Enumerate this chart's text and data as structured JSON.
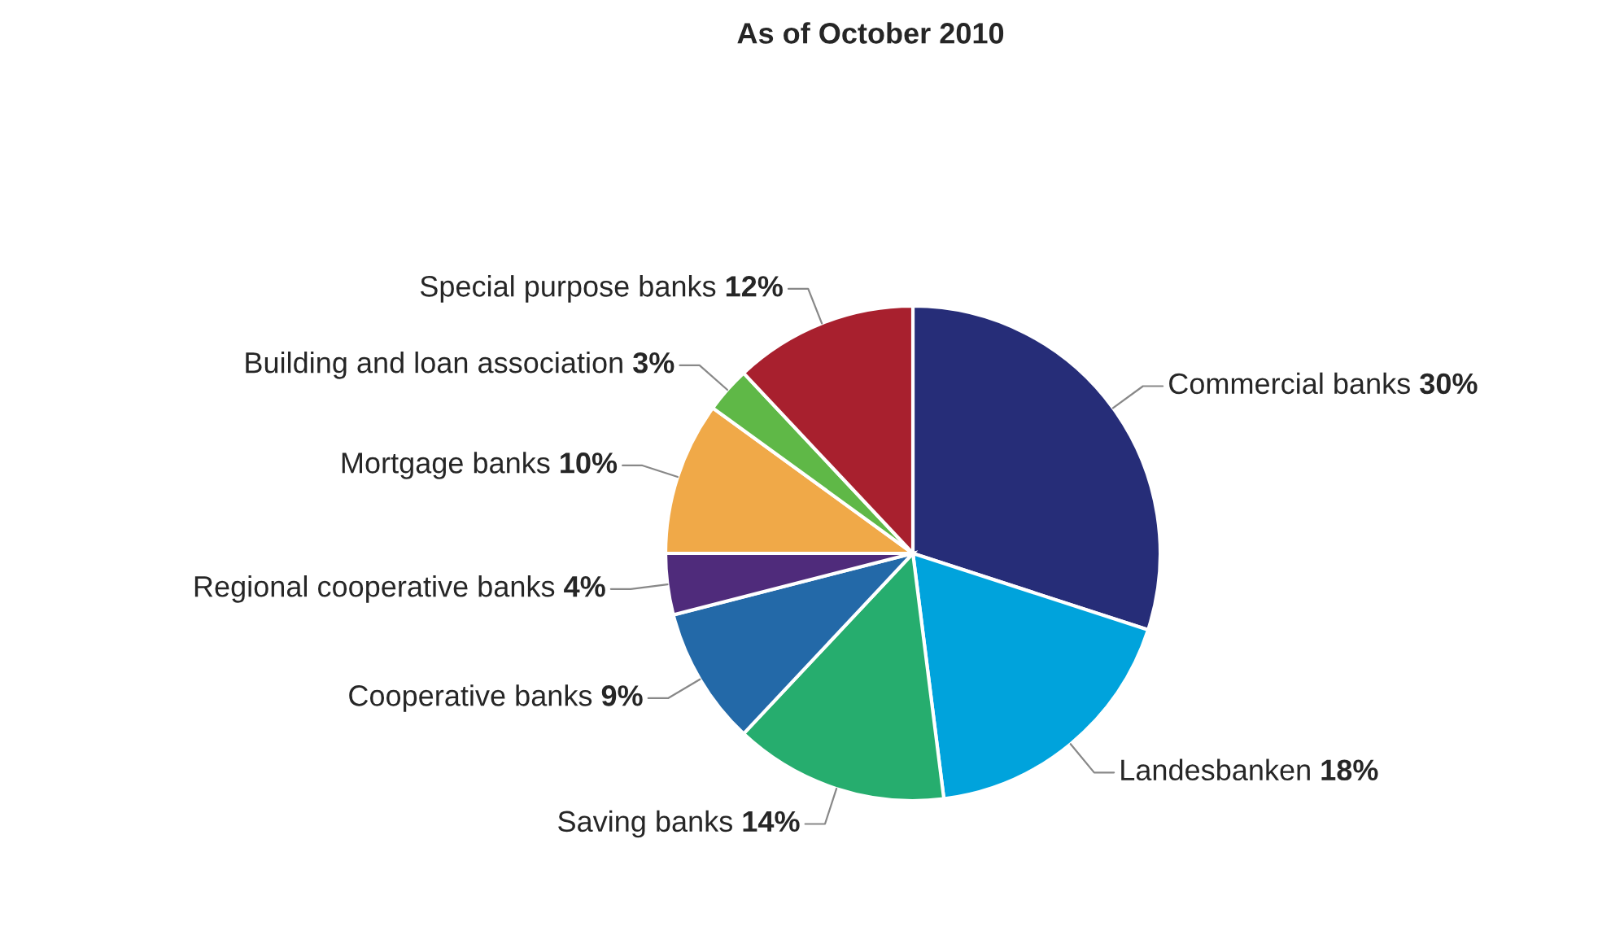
{
  "chart_data": {
    "type": "pie",
    "title": "As of October 2010",
    "categories": [
      "Commercial banks",
      "Landesbanken",
      "Saving banks",
      "Cooperative banks",
      "Regional cooperative banks",
      "Mortgage banks",
      "Building and loan association",
      "Special purpose banks"
    ],
    "values": [
      30,
      18,
      14,
      9,
      4,
      10,
      3,
      12
    ],
    "value_labels": [
      "30%",
      "18%",
      "14%",
      "9%",
      "4%",
      "10%",
      "3%",
      "12%"
    ],
    "colors": [
      "#262d78",
      "#00a3dc",
      "#26ad6e",
      "#2369a8",
      "#4f2b7b",
      "#f0a948",
      "#5fb847",
      "#a8202e"
    ]
  }
}
